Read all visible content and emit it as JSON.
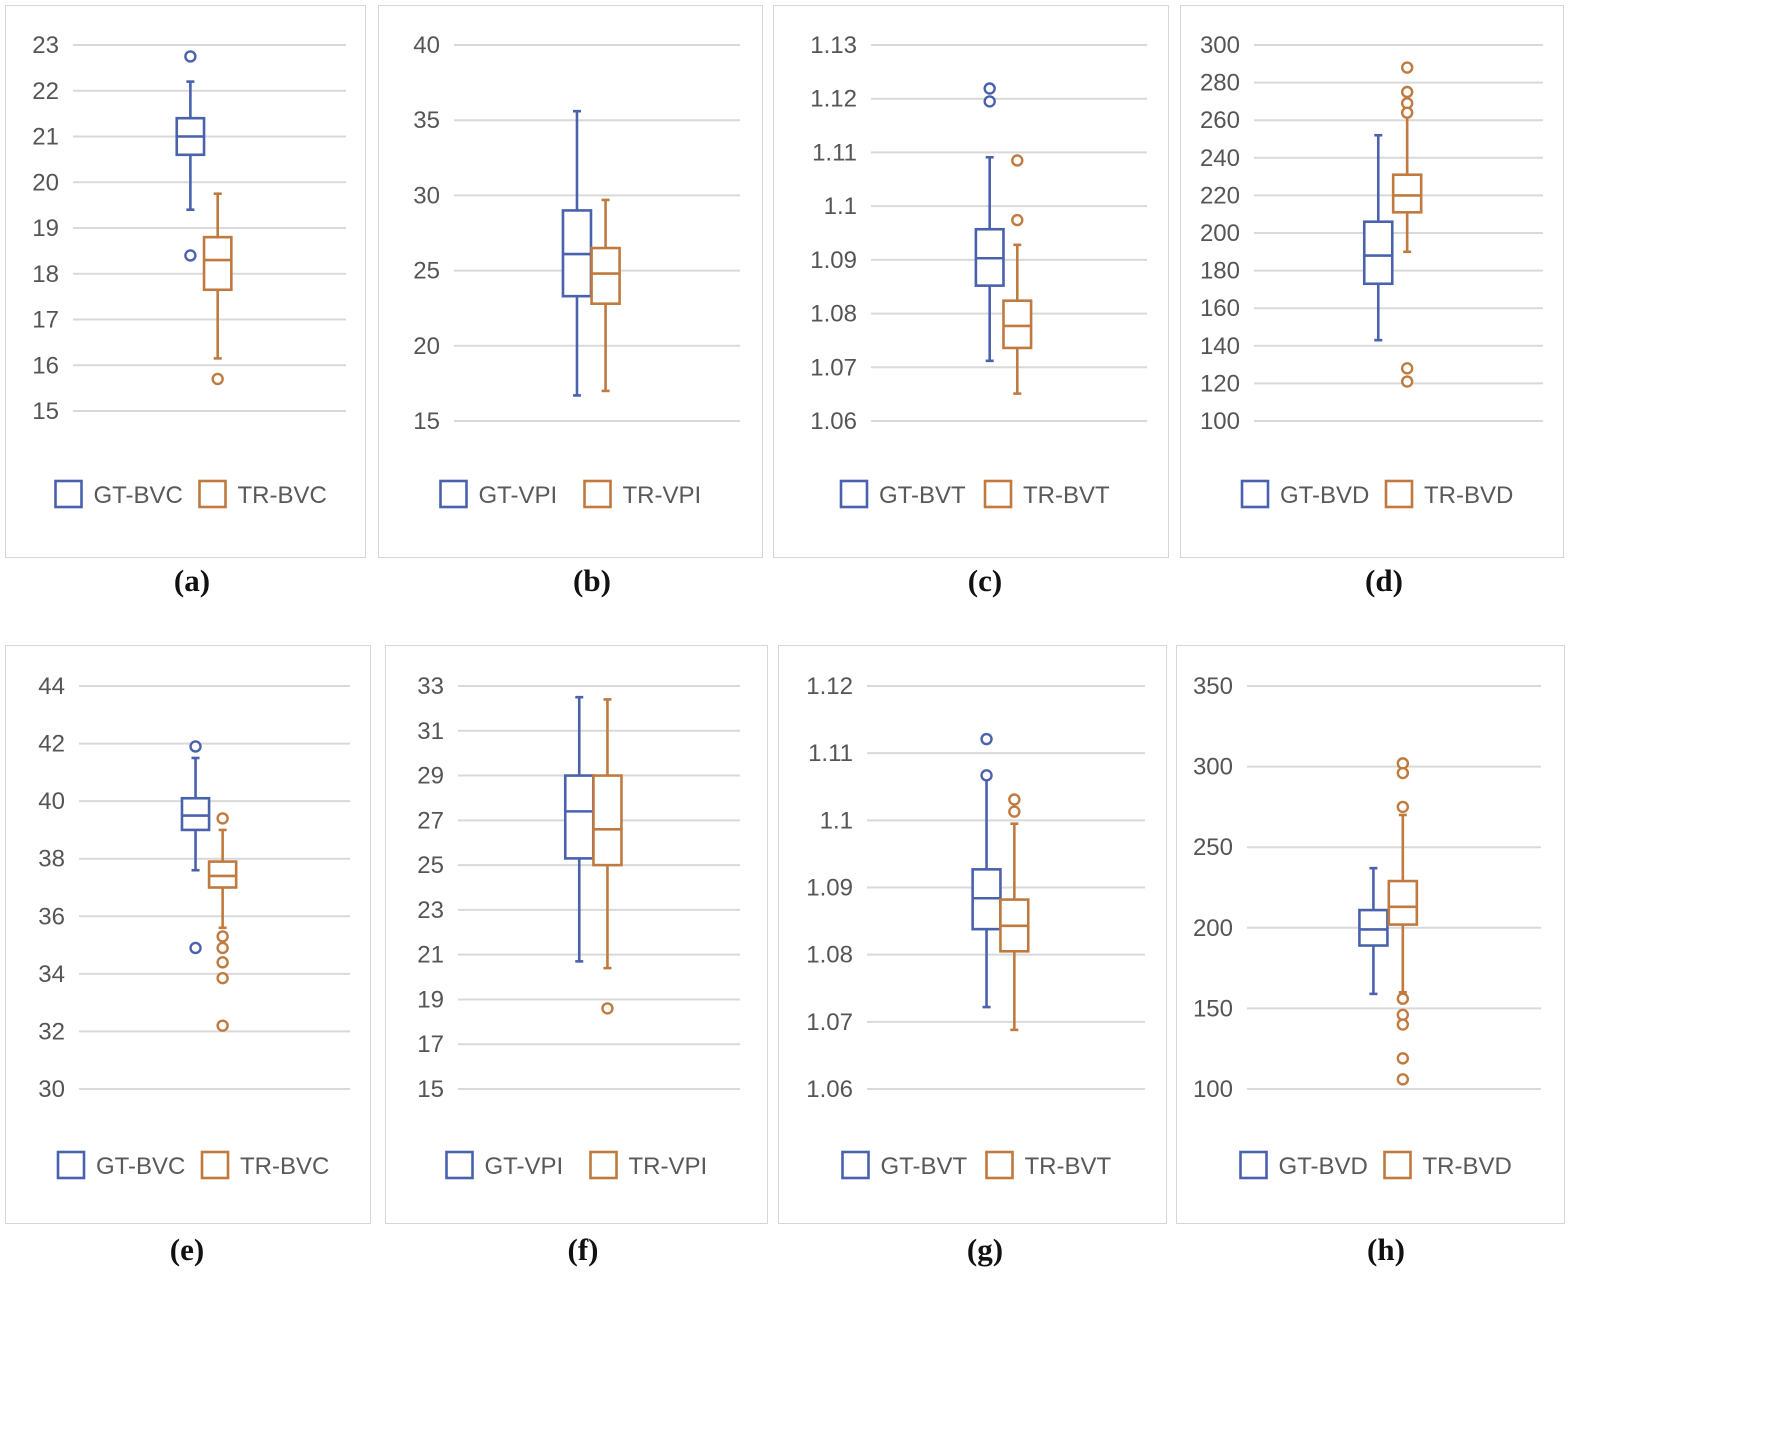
{
  "colors": {
    "gt": "#4a62ad",
    "tr": "#c07a3f",
    "grid": "#d9d9d9"
  },
  "chart_data": [
    {
      "type": "box",
      "caption": "(a)",
      "ylim": [
        15,
        23
      ],
      "yticks": [
        "15",
        "16",
        "17",
        "18",
        "19",
        "20",
        "21",
        "22",
        "23"
      ],
      "ytick_values": [
        15,
        16,
        17,
        18,
        19,
        20,
        21,
        22,
        23
      ],
      "series": [
        {
          "name": "GT-BVC",
          "color": "#4a62ad",
          "min": 19.4,
          "q1": 20.6,
          "median": 21.0,
          "q3": 21.4,
          "max": 22.2,
          "outliers": [
            22.75,
            18.4
          ]
        },
        {
          "name": "TR-BVC",
          "color": "#c07a3f",
          "min": 16.15,
          "q1": 17.65,
          "median": 18.3,
          "q3": 18.8,
          "max": 19.75,
          "outliers": [
            15.7
          ]
        }
      ]
    },
    {
      "type": "box",
      "caption": "(b)",
      "ylim": [
        15,
        40
      ],
      "yticks": [
        "15",
        "20",
        "25",
        "30",
        "35",
        "40"
      ],
      "ytick_values": [
        15,
        20,
        25,
        30,
        35,
        40
      ],
      "series": [
        {
          "name": "GT-VPI",
          "color": "#4a62ad",
          "min": 16.7,
          "q1": 23.3,
          "median": 26.1,
          "q3": 29.0,
          "max": 35.6,
          "outliers": []
        },
        {
          "name": "TR-VPI",
          "color": "#c07a3f",
          "min": 17.0,
          "q1": 22.8,
          "median": 24.8,
          "q3": 26.5,
          "max": 29.7,
          "outliers": []
        }
      ]
    },
    {
      "type": "box",
      "caption": "(c)",
      "ylim": [
        1.06,
        1.13
      ],
      "yticks": [
        "1.06",
        "1.07",
        "1.08",
        "1.09",
        "1.1",
        "1.11",
        "1.12",
        "1.13"
      ],
      "ytick_values": [
        1.06,
        1.07,
        1.08,
        1.09,
        1.1,
        1.11,
        1.12,
        1.13
      ],
      "series": [
        {
          "name": "GT-BVT",
          "color": "#4a62ad",
          "min": 1.0712,
          "q1": 1.0852,
          "median": 1.0903,
          "q3": 1.0957,
          "max": 1.1091,
          "outliers": [
            1.1219,
            1.1195
          ]
        },
        {
          "name": "TR-BVT",
          "color": "#c07a3f",
          "min": 1.0651,
          "q1": 1.0736,
          "median": 1.0777,
          "q3": 1.0824,
          "max": 1.0928,
          "outliers": [
            1.1085,
            1.0974
          ]
        }
      ]
    },
    {
      "type": "box",
      "caption": "(d)",
      "ylim": [
        100,
        300
      ],
      "yticks": [
        "100",
        "120",
        "140",
        "160",
        "180",
        "200",
        "220",
        "240",
        "260",
        "280",
        "300"
      ],
      "ytick_values": [
        100,
        120,
        140,
        160,
        180,
        200,
        220,
        240,
        260,
        280,
        300
      ],
      "series": [
        {
          "name": "GT-BVD",
          "color": "#4a62ad",
          "min": 143,
          "q1": 173,
          "median": 188,
          "q3": 206,
          "max": 252,
          "outliers": []
        },
        {
          "name": "TR-BVD",
          "color": "#c07a3f",
          "min": 190,
          "q1": 211,
          "median": 220,
          "q3": 231,
          "max": 262,
          "outliers": [
            288,
            275,
            269,
            264,
            128,
            121
          ]
        }
      ]
    },
    {
      "type": "box",
      "caption": "(e)",
      "ylim": [
        30,
        44
      ],
      "yticks": [
        "30",
        "32",
        "34",
        "36",
        "38",
        "40",
        "42",
        "44"
      ],
      "ytick_values": [
        30,
        32,
        34,
        36,
        38,
        40,
        42,
        44
      ],
      "series": [
        {
          "name": "GT-BVC",
          "color": "#4a62ad",
          "min": 37.6,
          "q1": 39.0,
          "median": 39.5,
          "q3": 40.1,
          "max": 41.5,
          "outliers": [
            41.9,
            34.9
          ]
        },
        {
          "name": "TR-BVC",
          "color": "#c07a3f",
          "min": 35.6,
          "q1": 37.0,
          "median": 37.4,
          "q3": 37.9,
          "max": 39.0,
          "outliers": [
            39.4,
            35.3,
            34.9,
            34.4,
            33.85,
            32.2
          ]
        }
      ]
    },
    {
      "type": "box",
      "caption": "(f)",
      "ylim": [
        15,
        33
      ],
      "yticks": [
        "15",
        "17",
        "19",
        "21",
        "23",
        "25",
        "27",
        "29",
        "31",
        "33"
      ],
      "ytick_values": [
        15,
        17,
        19,
        21,
        23,
        25,
        27,
        29,
        31,
        33
      ],
      "series": [
        {
          "name": "GT-VPI",
          "color": "#4a62ad",
          "min": 20.7,
          "q1": 25.3,
          "median": 27.4,
          "q3": 29.0,
          "max": 32.5,
          "outliers": []
        },
        {
          "name": "TR-VPI",
          "color": "#c07a3f",
          "min": 20.4,
          "q1": 25.0,
          "median": 26.6,
          "q3": 29.0,
          "max": 32.4,
          "outliers": [
            18.6
          ]
        }
      ]
    },
    {
      "type": "box",
      "caption": "(g)",
      "ylim": [
        1.06,
        1.12
      ],
      "yticks": [
        "1.06",
        "1.07",
        "1.08",
        "1.09",
        "1.1",
        "1.11",
        "1.12"
      ],
      "ytick_values": [
        1.06,
        1.07,
        1.08,
        1.09,
        1.1,
        1.11,
        1.12
      ],
      "series": [
        {
          "name": "GT-BVT",
          "color": "#4a62ad",
          "min": 1.0722,
          "q1": 1.0838,
          "median": 1.0884,
          "q3": 1.0927,
          "max": 1.1062,
          "outliers": [
            1.1121,
            1.1067
          ]
        },
        {
          "name": "TR-BVT",
          "color": "#c07a3f",
          "min": 1.0688,
          "q1": 1.0805,
          "median": 1.0843,
          "q3": 1.0882,
          "max": 1.0995,
          "outliers": [
            1.1031,
            1.1013
          ]
        }
      ]
    },
    {
      "type": "box",
      "caption": "(h)",
      "ylim": [
        100,
        350
      ],
      "yticks": [
        "100",
        "150",
        "200",
        "250",
        "300",
        "350"
      ],
      "ytick_values": [
        100,
        150,
        200,
        250,
        300,
        350
      ],
      "series": [
        {
          "name": "GT-BVD",
          "color": "#4a62ad",
          "min": 159,
          "q1": 189,
          "median": 199,
          "q3": 211,
          "max": 237,
          "outliers": []
        },
        {
          "name": "TR-BVD",
          "color": "#c07a3f",
          "min": 160,
          "q1": 202,
          "median": 213,
          "q3": 229,
          "max": 270,
          "outliers": [
            302,
            296,
            275,
            156,
            146,
            140,
            119,
            106
          ]
        }
      ]
    }
  ]
}
